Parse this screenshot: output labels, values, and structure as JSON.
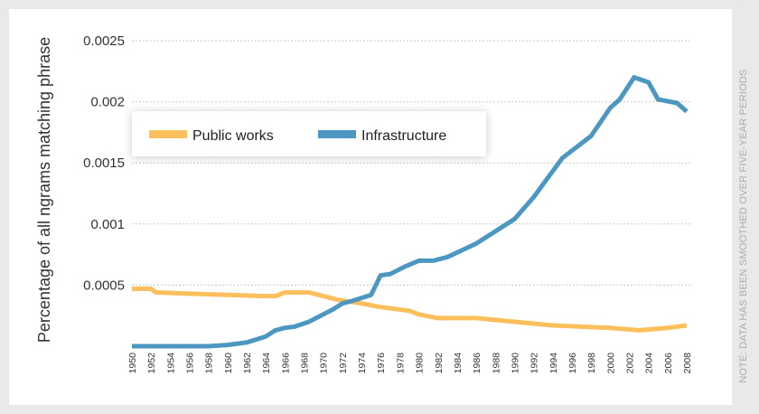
{
  "chart_data": {
    "type": "line",
    "ylabel": "Percentage of all ngrams matching phrase",
    "xlabel": "",
    "ylim": [
      0,
      0.0025
    ],
    "yticks": [
      "0.0005",
      "0.001",
      "0.0015",
      "0.002",
      "0.0025"
    ],
    "xlim": [
      1950,
      2008
    ],
    "xticks": [
      "1950",
      "1952",
      "1954",
      "1956",
      "1958",
      "1960",
      "1962",
      "1964",
      "1966",
      "1968",
      "1970",
      "1972",
      "1974",
      "1976",
      "1978",
      "1980",
      "1982",
      "1984",
      "1986",
      "1988",
      "1990",
      "1992",
      "1994",
      "1996",
      "1998",
      "2000",
      "2002",
      "2004",
      "2006",
      "2008"
    ],
    "grid": true,
    "legend_position": "top-left",
    "note": "NOTE: DATA HAS BEEN SMOOTHED OVER FIVE-YEAR PERIODS",
    "series": [
      {
        "name": "Public works",
        "color": "#fbbf5b",
        "points": [
          [
            1950,
            0.00047
          ],
          [
            1952,
            0.00047
          ],
          [
            1952.5,
            0.00044
          ],
          [
            1956,
            0.00043
          ],
          [
            1960,
            0.00042
          ],
          [
            1964,
            0.00041
          ],
          [
            1965,
            0.00041
          ],
          [
            1966,
            0.00044
          ],
          [
            1968.5,
            0.00044
          ],
          [
            1970,
            0.00041
          ],
          [
            1971.5,
            0.00038
          ],
          [
            1974,
            0.00035
          ],
          [
            1976,
            0.00032
          ],
          [
            1979,
            0.00029
          ],
          [
            1980,
            0.00026
          ],
          [
            1982,
            0.00023
          ],
          [
            1986,
            0.00023
          ],
          [
            1990,
            0.0002
          ],
          [
            1994,
            0.00017
          ],
          [
            2000,
            0.00015
          ],
          [
            2003,
            0.00013
          ],
          [
            2006,
            0.00015
          ],
          [
            2008,
            0.00017
          ]
        ]
      },
      {
        "name": "Infrastructure",
        "color": "#4c97c1",
        "points": [
          [
            1950,
            0.0
          ],
          [
            1958,
            0.0
          ],
          [
            1960,
            1e-05
          ],
          [
            1962,
            3e-05
          ],
          [
            1964,
            8e-05
          ],
          [
            1965,
            0.00013
          ],
          [
            1966,
            0.00015
          ],
          [
            1967,
            0.00016
          ],
          [
            1968.5,
            0.0002
          ],
          [
            1970,
            0.00026
          ],
          [
            1971,
            0.0003
          ],
          [
            1972,
            0.00035
          ],
          [
            1973,
            0.00037
          ],
          [
            1975,
            0.00042
          ],
          [
            1976,
            0.00058
          ],
          [
            1977,
            0.00059
          ],
          [
            1978.5,
            0.00065
          ],
          [
            1980,
            0.0007
          ],
          [
            1981.5,
            0.0007
          ],
          [
            1983,
            0.00073
          ],
          [
            1986,
            0.00084
          ],
          [
            1990,
            0.00104
          ],
          [
            1992,
            0.00122
          ],
          [
            1995,
            0.00154
          ],
          [
            1998,
            0.00172
          ],
          [
            2000,
            0.00195
          ],
          [
            2001,
            0.00202
          ],
          [
            2002.5,
            0.0022
          ],
          [
            2004,
            0.00216
          ],
          [
            2005,
            0.00202
          ],
          [
            2007,
            0.00199
          ],
          [
            2008,
            0.00192
          ]
        ]
      }
    ]
  }
}
